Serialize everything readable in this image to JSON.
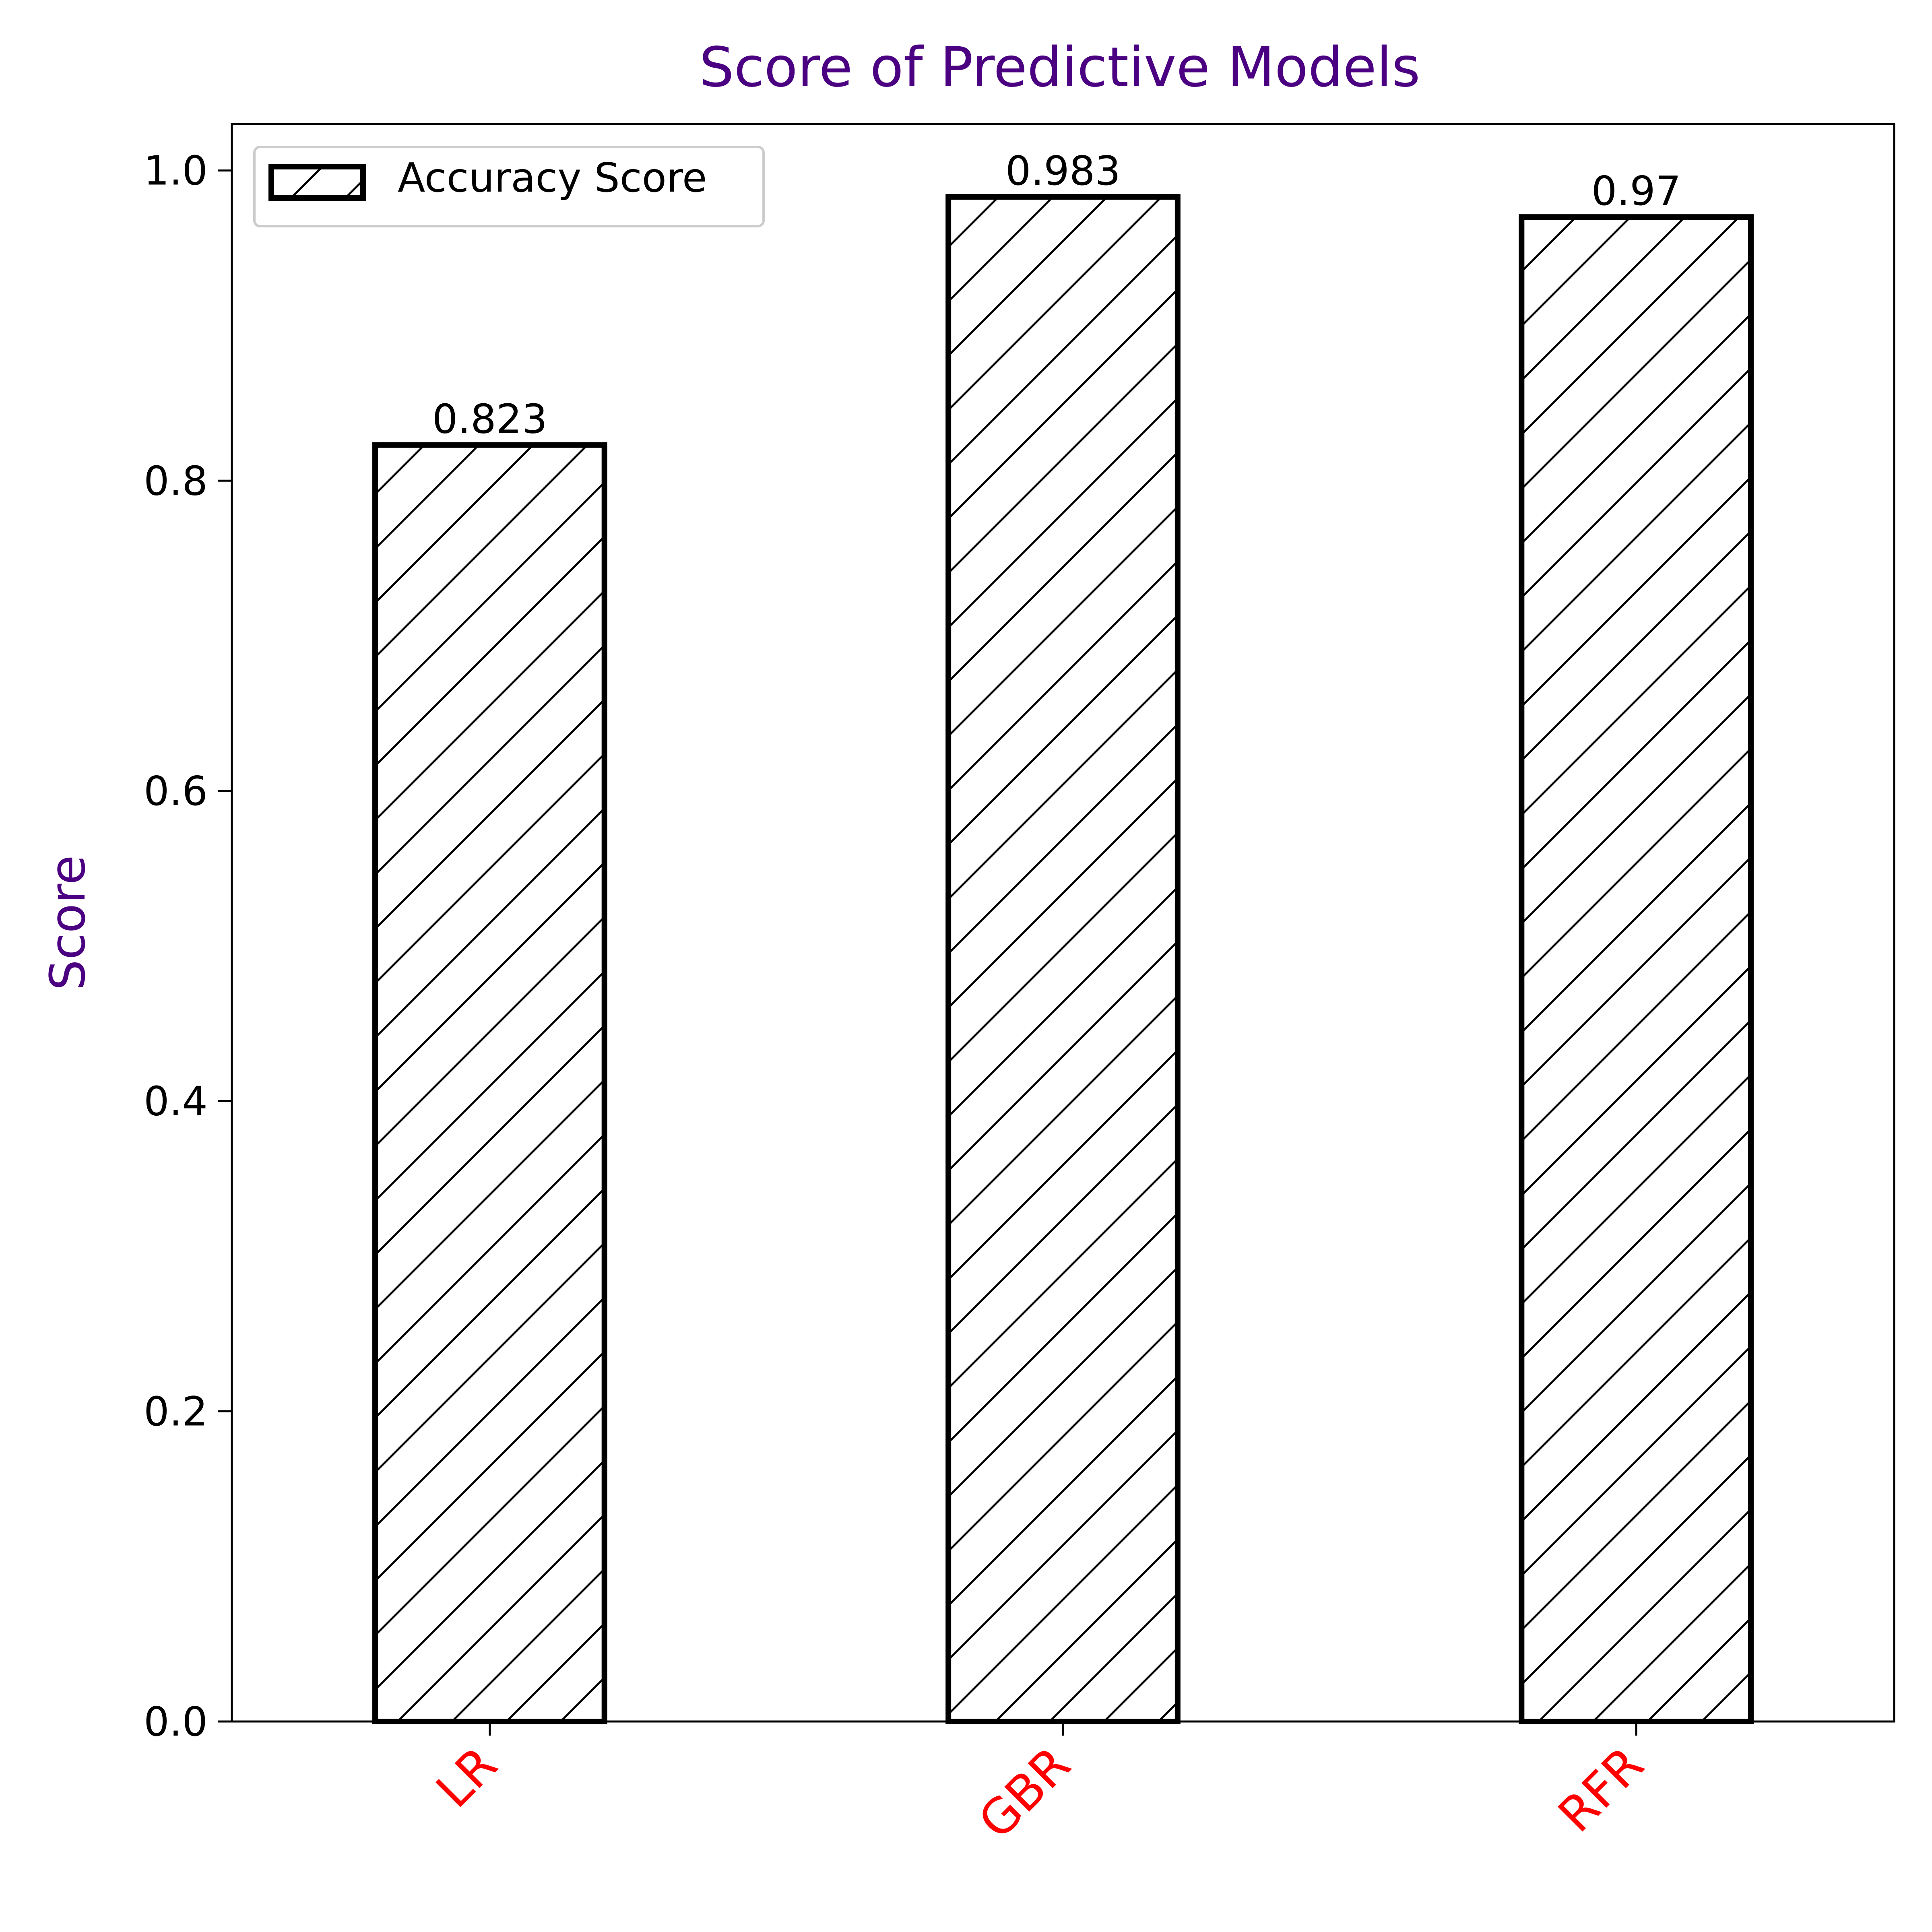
{
  "chart_data": {
    "type": "bar",
    "title": "Score of Predictive Models",
    "xlabel": "",
    "ylabel": "Score",
    "categories": [
      "LR",
      "GBR",
      "RFR"
    ],
    "series": [
      {
        "name": "Accuracy Score",
        "values": [
          0.823,
          0.983,
          0.97
        ]
      }
    ],
    "value_labels": [
      "0.823",
      "0.983",
      "0.97"
    ],
    "ylim": [
      0,
      1.03
    ],
    "yticks": [
      0.0,
      0.2,
      0.4,
      0.6,
      0.8,
      1.0
    ],
    "ytick_labels": [
      "0.0",
      "0.2",
      "0.4",
      "0.6",
      "0.8",
      "1.0"
    ],
    "grid": false,
    "legend_position": "top-left",
    "bar_fill": "hatched-diagonal",
    "colors": {
      "title": "#4b0082",
      "ylabel": "#4b0082",
      "xtick_labels": "#ff0000",
      "bar_edge": "#000000",
      "bar_fill": "#ffffff"
    }
  }
}
